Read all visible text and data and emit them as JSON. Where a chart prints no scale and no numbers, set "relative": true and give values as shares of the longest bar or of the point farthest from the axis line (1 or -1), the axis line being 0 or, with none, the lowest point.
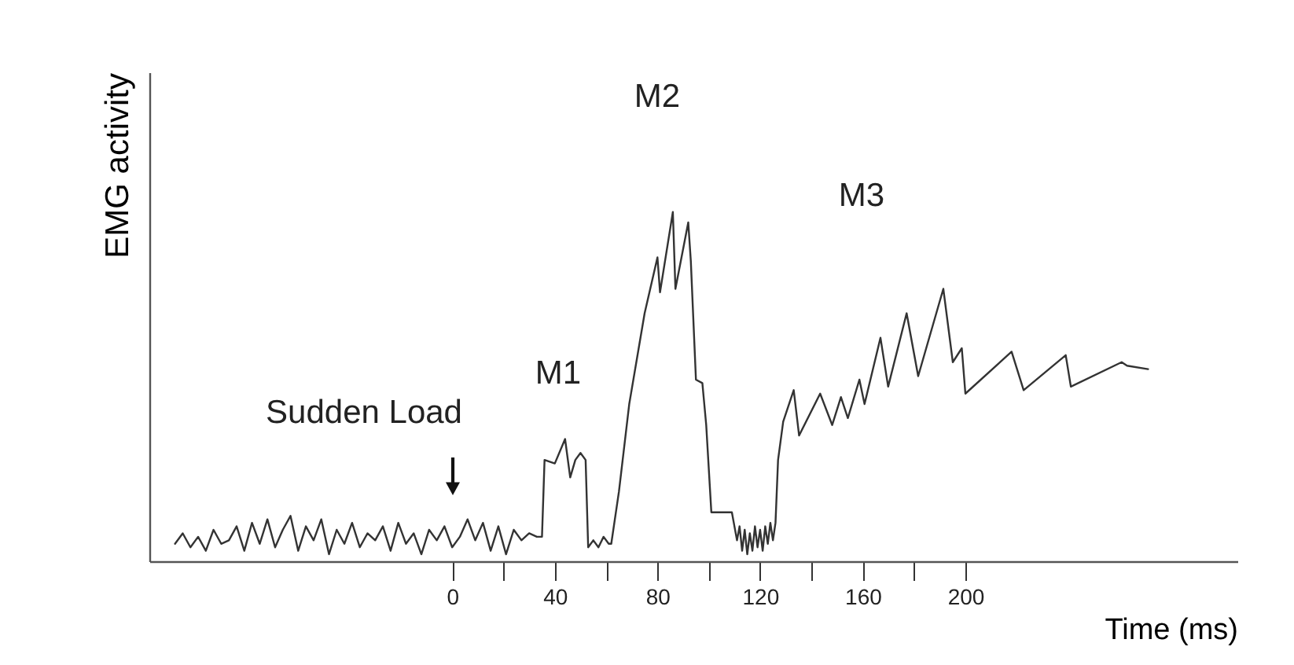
{
  "chart_data": {
    "type": "line",
    "relative": true,
    "xlabel": "Time (ms)",
    "ylabel": "EMG activity",
    "xlim": [
      -118,
      306
    ],
    "xticks": [
      0,
      {
        "value": 20,
        "label": null
      },
      40,
      {
        "value": 60,
        "label": null
      },
      80,
      {
        "value": 100,
        "label": null
      },
      120,
      {
        "value": 140,
        "label": null
      },
      160,
      {
        "value": 180,
        "label": null
      },
      200
    ],
    "grid": false,
    "marker": "none",
    "line_style": "solid",
    "annotations": [
      "Sudden Load",
      "M1",
      "M2",
      "M3"
    ],
    "series": [
      {
        "color": "#333333",
        "x": [
          -108,
          -105,
          -102,
          -99,
          -96,
          -93,
          -90,
          -87,
          -84,
          -81,
          -78,
          -75,
          -72,
          -69,
          -66,
          -63,
          -60,
          -57,
          -54,
          -51,
          -48,
          -45,
          -42,
          -39,
          -36,
          -33,
          -30,
          -27,
          -24,
          -21,
          -18,
          -15,
          -12,
          -9,
          -6,
          -3,
          0,
          3,
          6,
          9,
          12,
          15,
          18,
          21,
          24,
          27,
          30,
          33,
          35,
          36,
          40,
          44,
          46,
          48,
          50,
          52,
          53,
          55,
          57,
          59,
          61,
          62,
          65,
          69,
          75,
          80,
          81,
          86,
          87,
          92,
          93,
          95,
          97.5,
          99,
          101,
          109,
          111,
          112,
          113,
          114,
          115,
          116,
          117,
          118,
          119,
          120,
          121,
          122,
          123,
          124,
          125,
          126,
          127,
          129,
          133.1,
          135.2,
          143.4,
          148.1,
          151.5,
          154.2,
          158.7,
          160.7,
          166.9,
          169.9,
          177.1,
          181.6,
          191.4,
          195.1,
          198.6,
          200,
          218,
          222.7,
          239.1,
          241.1,
          260.9,
          263,
          271.2
        ],
        "values": [
          0.05,
          0.08,
          0.04,
          0.07,
          0.03,
          0.09,
          0.05,
          0.06,
          0.1,
          0.03,
          0.11,
          0.05,
          0.12,
          0.04,
          0.09,
          0.13,
          0.03,
          0.1,
          0.06,
          0.12,
          0.02,
          0.09,
          0.05,
          0.11,
          0.04,
          0.08,
          0.06,
          0.1,
          0.03,
          0.11,
          0.05,
          0.08,
          0.02,
          0.09,
          0.06,
          0.1,
          0.04,
          0.07,
          0.12,
          0.06,
          0.11,
          0.03,
          0.1,
          0.02,
          0.09,
          0.06,
          0.08,
          0.07,
          0.07,
          0.29,
          0.28,
          0.35,
          0.24,
          0.29,
          0.31,
          0.29,
          0.04,
          0.06,
          0.04,
          0.07,
          0.05,
          0.05,
          0.2,
          0.45,
          0.71,
          0.87,
          0.77,
          1.0,
          0.78,
          0.97,
          0.86,
          0.52,
          0.51,
          0.39,
          0.14,
          0.14,
          0.06,
          0.1,
          0.03,
          0.09,
          0.02,
          0.08,
          0.03,
          0.1,
          0.04,
          0.09,
          0.03,
          0.1,
          0.05,
          0.11,
          0.06,
          0.11,
          0.29,
          0.4,
          0.49,
          0.36,
          0.48,
          0.39,
          0.47,
          0.41,
          0.52,
          0.45,
          0.64,
          0.5,
          0.71,
          0.53,
          0.78,
          0.57,
          0.61,
          0.48,
          0.6,
          0.49,
          0.59,
          0.5,
          0.57,
          0.56,
          0.55
        ]
      }
    ]
  }
}
